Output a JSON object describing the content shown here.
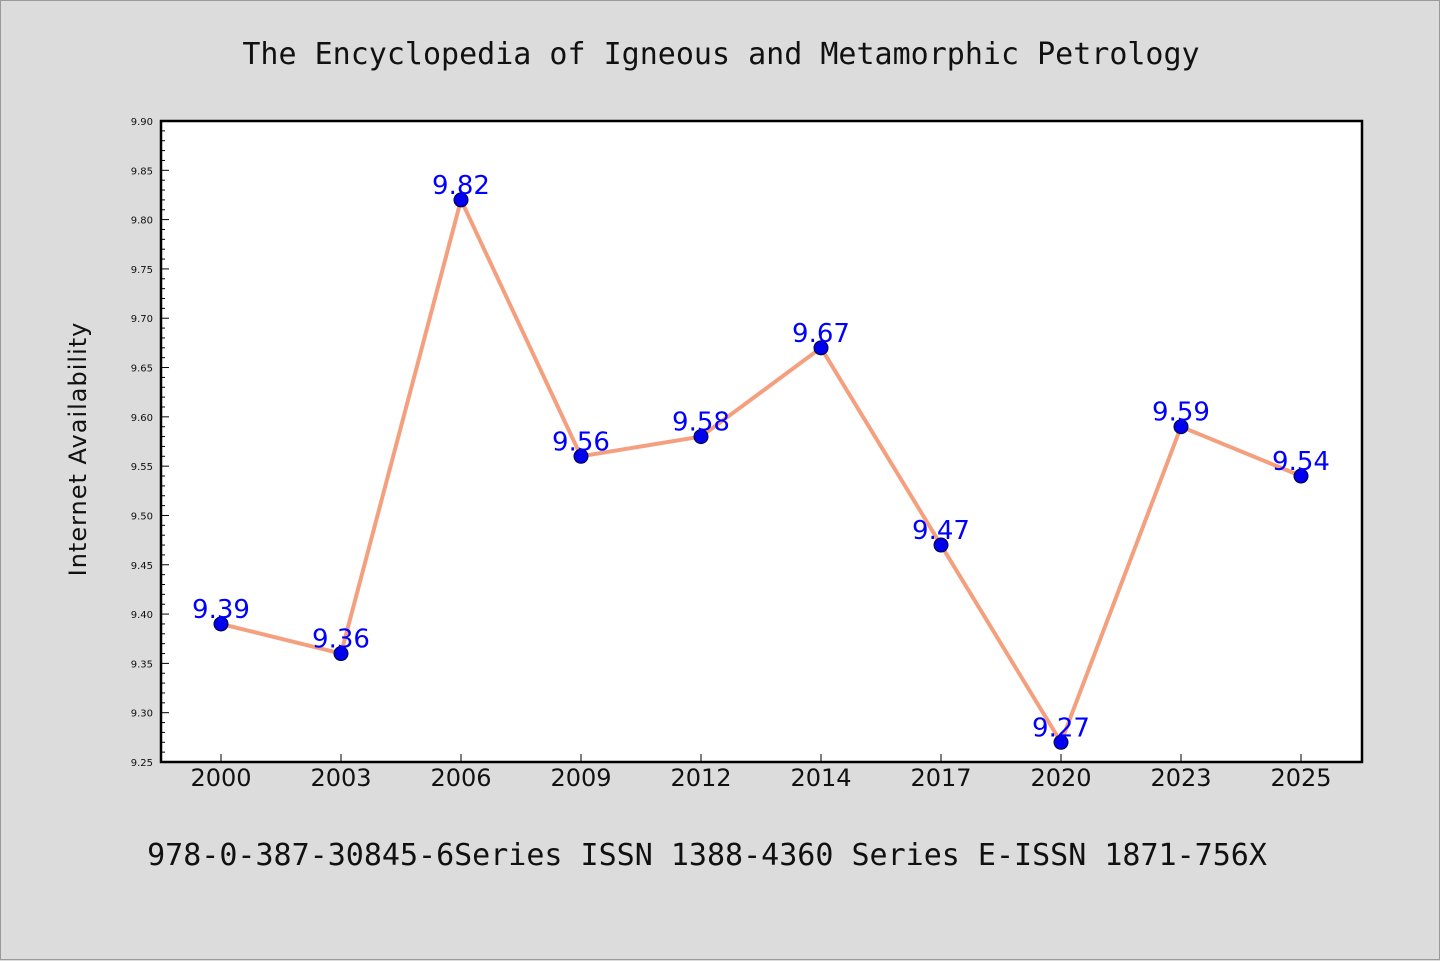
{
  "chart_data": {
    "type": "line",
    "title": "The Encyclopedia of Igneous and Metamorphic Petrology",
    "xlabel": "",
    "ylabel": "Internet Availability",
    "categories": [
      "2000",
      "2003",
      "2006",
      "2009",
      "2012",
      "2014",
      "2017",
      "2020",
      "2023",
      "2025"
    ],
    "series": [
      {
        "values": [
          9.39,
          9.36,
          9.82,
          9.56,
          9.58,
          9.67,
          9.47,
          9.27,
          9.59,
          9.54
        ],
        "labels": [
          "9.39",
          "9.36",
          "9.82",
          "9.56",
          "9.58",
          "9.67",
          "9.47",
          "9.27",
          "9.59",
          "9.54"
        ]
      }
    ],
    "ylim": [
      9.25,
      9.9
    ],
    "yticks": [
      "9.25",
      "9.30",
      "9.35",
      "9.40",
      "9.45",
      "9.50",
      "9.55",
      "9.60",
      "9.65",
      "9.70",
      "9.75",
      "9.80",
      "9.85",
      "9.90"
    ],
    "grid": false,
    "colors": {
      "line": "#f4a07f",
      "marker": "#0000ee",
      "marker_edge": "#000033",
      "data_label": "#0000ff"
    }
  },
  "footer": {
    "text": "978-0-387-30845-6Series ISSN 1388-4360 Series E-ISSN 1871-756X"
  }
}
